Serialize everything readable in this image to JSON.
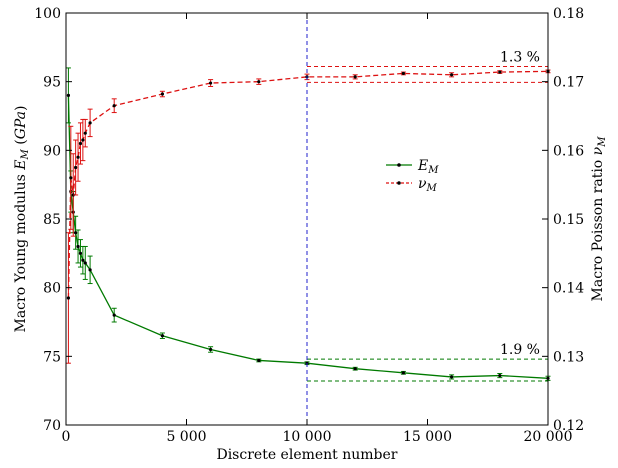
{
  "chart_data": {
    "type": "line",
    "xlabel": "Discrete element number",
    "ylabel_left": "Macro Young modulus E_M (GPa)",
    "ylabel_right": "Macro Poisson ratio ν_M",
    "xlim": [
      0,
      20000
    ],
    "ylim_left": [
      70,
      100
    ],
    "ylim_right": [
      0.12,
      0.18
    ],
    "x_ticks": [
      0,
      5000,
      10000,
      15000,
      20000
    ],
    "x_tick_labels": [
      "0",
      "5 000",
      "10 000",
      "15 000",
      "20 000"
    ],
    "y_left_ticks": [
      70,
      75,
      80,
      85,
      90,
      95,
      100
    ],
    "y_left_tick_labels": [
      "70",
      "75",
      "80",
      "85",
      "90",
      "95",
      "100"
    ],
    "y_right_ticks": [
      0.12,
      0.13,
      0.14,
      0.15,
      0.16,
      0.17,
      0.18
    ],
    "y_right_tick_labels": [
      "0.12",
      "0.13",
      "0.14",
      "0.15",
      "0.16",
      "0.17",
      "0.18"
    ],
    "grid": false,
    "legend_position": "center-right",
    "vline_x": 10000,
    "series": [
      {
        "name": "E_M",
        "axis": "left",
        "color": "#007a00",
        "style": "solid",
        "x": [
          100,
          200,
          300,
          400,
          500,
          600,
          700,
          800,
          1000,
          2000,
          4000,
          6000,
          8000,
          10000,
          12000,
          14000,
          16000,
          18000,
          20000
        ],
        "y": [
          94.0,
          87.0,
          85.5,
          84.0,
          83.0,
          82.5,
          82.0,
          81.8,
          81.3,
          78.0,
          76.5,
          75.5,
          74.7,
          74.5,
          74.1,
          73.8,
          73.5,
          73.6,
          73.4
        ],
        "err": [
          2.0,
          1.5,
          1.5,
          1.2,
          1.2,
          1.0,
          1.0,
          1.2,
          1.0,
          0.5,
          0.2,
          0.2,
          0.1,
          0.1,
          0.1,
          0.1,
          0.15,
          0.15,
          0.15
        ]
      },
      {
        "name": "ν_M",
        "axis": "right",
        "color": "#dd1111",
        "style": "dashed",
        "x": [
          100,
          200,
          300,
          400,
          500,
          600,
          700,
          800,
          1000,
          2000,
          4000,
          6000,
          8000,
          10000,
          12000,
          14000,
          16000,
          18000,
          20000
        ],
        "y": [
          0.1385,
          0.156,
          0.1535,
          0.1575,
          0.159,
          0.161,
          0.1615,
          0.1625,
          0.164,
          0.1665,
          0.1682,
          0.1698,
          0.17,
          0.1707,
          0.1707,
          0.1712,
          0.171,
          0.1714,
          0.1715
        ],
        "err": [
          0.0095,
          0.0075,
          0.006,
          0.004,
          0.0035,
          0.003,
          0.003,
          0.002,
          0.002,
          0.001,
          0.0004,
          0.0005,
          0.0004,
          0.0004,
          0.0003,
          0.0002,
          0.0003,
          0.0002,
          0.0002
        ]
      }
    ],
    "bands": [
      {
        "label": "1.9 %",
        "axis": "left",
        "x_from": 10000,
        "x_to": 20000,
        "lower": 73.2,
        "upper": 74.8,
        "color": "#007a00"
      },
      {
        "label": "1.3 %",
        "axis": "right",
        "x_from": 10000,
        "x_to": 20000,
        "lower": 0.1699,
        "upper": 0.1722,
        "color": "#dd1111"
      }
    ]
  }
}
